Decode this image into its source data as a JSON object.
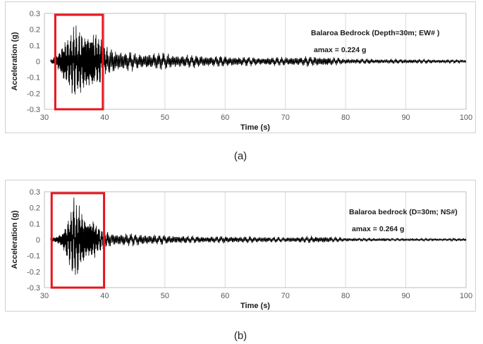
{
  "chart_data": [
    {
      "type": "line",
      "xlabel": "Time (s)",
      "ylabel": "Acceleration (g)",
      "xlim": [
        30,
        100
      ],
      "ylim": [
        -0.3,
        0.3
      ],
      "x_ticks": [
        "30",
        "40",
        "50",
        "60",
        "70",
        "80",
        "90",
        "100"
      ],
      "y_ticks": [
        "0.3",
        "0.2",
        "0.1",
        "0",
        "-0.1",
        "-0.2",
        "-0.3"
      ],
      "grid": "vertical",
      "annotation": "Balaroa Bedrock (Depth=30m; EW# )",
      "amax_label": "amax = 0.224 g",
      "pga": 0.224,
      "highlight_x": [
        31.8,
        39.7
      ],
      "highlight_color": "#e8141c",
      "line_color": "#000000",
      "envelope": [
        {
          "x": 31,
          "amp": 0.01
        },
        {
          "x": 32,
          "amp": 0.04
        },
        {
          "x": 33,
          "amp": 0.12
        },
        {
          "x": 34,
          "amp": 0.16
        },
        {
          "x": 35,
          "amp": 0.2
        },
        {
          "x": 36,
          "amp": 0.19
        },
        {
          "x": 37,
          "amp": 0.21
        },
        {
          "x": 38,
          "amp": 0.2
        },
        {
          "x": 39,
          "amp": 0.15
        },
        {
          "x": 40,
          "amp": 0.08
        },
        {
          "x": 42,
          "amp": 0.07
        },
        {
          "x": 45,
          "amp": 0.05
        },
        {
          "x": 48,
          "amp": 0.05
        },
        {
          "x": 52,
          "amp": 0.04
        },
        {
          "x": 55,
          "amp": 0.035
        },
        {
          "x": 60,
          "amp": 0.03
        },
        {
          "x": 65,
          "amp": 0.025
        },
        {
          "x": 70,
          "amp": 0.025
        },
        {
          "x": 76,
          "amp": 0.03
        },
        {
          "x": 80,
          "amp": 0.015
        },
        {
          "x": 90,
          "amp": 0.012
        },
        {
          "x": 100,
          "amp": 0.01
        }
      ]
    },
    {
      "type": "line",
      "xlabel": "Time (s)",
      "ylabel": "Acceleration (g)",
      "xlim": [
        30,
        100
      ],
      "ylim": [
        -0.3,
        0.3
      ],
      "x_ticks": [
        "30",
        "40",
        "50",
        "60",
        "70",
        "80",
        "90",
        "100"
      ],
      "y_ticks": [
        "0.3",
        "0.2",
        "0.1",
        "0",
        "-0.1",
        "-0.2",
        "-0.3"
      ],
      "grid": "vertical",
      "annotation": "Balaroa bedrock (D=30m; NS#)",
      "amax_label": "amax = 0.264 g",
      "pga": 0.264,
      "highlight_x": [
        31.2,
        39.9
      ],
      "highlight_color": "#e8141c",
      "line_color": "#000000",
      "envelope": [
        {
          "x": 31,
          "amp": 0.01
        },
        {
          "x": 32,
          "amp": 0.02
        },
        {
          "x": 33,
          "amp": 0.06
        },
        {
          "x": 34,
          "amp": 0.14
        },
        {
          "x": 35,
          "amp": 0.26
        },
        {
          "x": 36,
          "amp": 0.18
        },
        {
          "x": 37,
          "amp": 0.15
        },
        {
          "x": 38,
          "amp": 0.14
        },
        {
          "x": 39,
          "amp": 0.08
        },
        {
          "x": 40,
          "amp": 0.05
        },
        {
          "x": 42,
          "amp": 0.04
        },
        {
          "x": 45,
          "amp": 0.035
        },
        {
          "x": 48,
          "amp": 0.03
        },
        {
          "x": 52,
          "amp": 0.025
        },
        {
          "x": 55,
          "amp": 0.02
        },
        {
          "x": 60,
          "amp": 0.02
        },
        {
          "x": 65,
          "amp": 0.018
        },
        {
          "x": 70,
          "amp": 0.015
        },
        {
          "x": 76,
          "amp": 0.02
        },
        {
          "x": 80,
          "amp": 0.01
        },
        {
          "x": 90,
          "amp": 0.008
        },
        {
          "x": 100,
          "amp": 0.008
        }
      ]
    }
  ],
  "captions": [
    "(a)",
    "(b)"
  ]
}
